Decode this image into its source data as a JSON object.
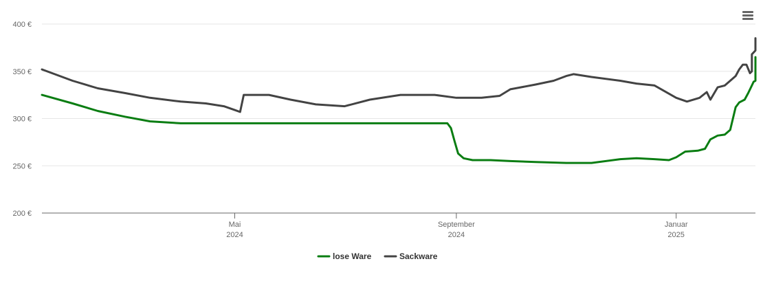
{
  "menu_icon": "hamburger-menu-icon",
  "chart_data": {
    "type": "line",
    "title": "",
    "xlabel": "",
    "ylabel": "",
    "ylim": [
      200,
      400
    ],
    "y_ticks": [
      {
        "value": 400,
        "label": "400 €"
      },
      {
        "value": 350,
        "label": "350 €"
      },
      {
        "value": 300,
        "label": "300 €"
      },
      {
        "value": 250,
        "label": "250 €"
      },
      {
        "value": 200,
        "label": "200 €"
      }
    ],
    "xlim": [
      "2024-01-15",
      "2025-02-14"
    ],
    "x_ticks": [
      {
        "date": "2024-05-01",
        "month": "Mai",
        "year": "2024"
      },
      {
        "date": "2024-09-01",
        "month": "September",
        "year": "2024"
      },
      {
        "date": "2025-01-01",
        "month": "Januar",
        "year": "2025"
      }
    ],
    "grid": true,
    "legend_position": "bottom-center",
    "series": [
      {
        "name": "lose Ware",
        "color": "#0a7d12",
        "points": [
          [
            "2024-01-15",
            325
          ],
          [
            "2024-02-01",
            316
          ],
          [
            "2024-02-15",
            308
          ],
          [
            "2024-03-01",
            302
          ],
          [
            "2024-03-15",
            297
          ],
          [
            "2024-04-01",
            295
          ],
          [
            "2024-05-01",
            295
          ],
          [
            "2024-06-01",
            295
          ],
          [
            "2024-07-01",
            295
          ],
          [
            "2024-08-01",
            295
          ],
          [
            "2024-08-27",
            295
          ],
          [
            "2024-08-29",
            290
          ],
          [
            "2024-08-31",
            276
          ],
          [
            "2024-09-02",
            263
          ],
          [
            "2024-09-05",
            258
          ],
          [
            "2024-09-10",
            256
          ],
          [
            "2024-09-20",
            256
          ],
          [
            "2024-10-01",
            255
          ],
          [
            "2024-10-15",
            254
          ],
          [
            "2024-11-01",
            253
          ],
          [
            "2024-11-15",
            253
          ],
          [
            "2024-12-01",
            257
          ],
          [
            "2024-12-10",
            258
          ],
          [
            "2024-12-20",
            257
          ],
          [
            "2024-12-28",
            256
          ],
          [
            "2025-01-01",
            259
          ],
          [
            "2025-01-06",
            265
          ],
          [
            "2025-01-13",
            266
          ],
          [
            "2025-01-17",
            268
          ],
          [
            "2025-01-20",
            278
          ],
          [
            "2025-01-24",
            282
          ],
          [
            "2025-01-28",
            283
          ],
          [
            "2025-01-31",
            288
          ],
          [
            "2025-02-03",
            312
          ],
          [
            "2025-02-05",
            317
          ],
          [
            "2025-02-08",
            320
          ],
          [
            "2025-02-10",
            327
          ],
          [
            "2025-02-12",
            335
          ],
          [
            "2025-02-13",
            339
          ],
          [
            "2025-02-14",
            340
          ],
          [
            "2025-02-14",
            351
          ],
          [
            "2025-02-14",
            365
          ]
        ]
      },
      {
        "name": "Sackware",
        "color": "#434343",
        "points": [
          [
            "2024-01-15",
            352
          ],
          [
            "2024-02-01",
            340
          ],
          [
            "2024-02-15",
            332
          ],
          [
            "2024-03-01",
            327
          ],
          [
            "2024-03-15",
            322
          ],
          [
            "2024-04-01",
            318
          ],
          [
            "2024-04-15",
            316
          ],
          [
            "2024-04-25",
            313
          ],
          [
            "2024-05-01",
            309
          ],
          [
            "2024-05-04",
            307
          ],
          [
            "2024-05-06",
            325
          ],
          [
            "2024-05-20",
            325
          ],
          [
            "2024-06-01",
            320
          ],
          [
            "2024-06-15",
            315
          ],
          [
            "2024-07-01",
            313
          ],
          [
            "2024-07-15",
            320
          ],
          [
            "2024-08-01",
            325
          ],
          [
            "2024-08-20",
            325
          ],
          [
            "2024-09-01",
            322
          ],
          [
            "2024-09-15",
            322
          ],
          [
            "2024-09-25",
            324
          ],
          [
            "2024-10-01",
            331
          ],
          [
            "2024-10-15",
            336
          ],
          [
            "2024-10-25",
            340
          ],
          [
            "2024-11-01",
            345
          ],
          [
            "2024-11-05",
            347
          ],
          [
            "2024-11-15",
            344
          ],
          [
            "2024-12-01",
            340
          ],
          [
            "2024-12-10",
            337
          ],
          [
            "2024-12-20",
            335
          ],
          [
            "2025-01-01",
            322
          ],
          [
            "2025-01-07",
            318
          ],
          [
            "2025-01-14",
            322
          ],
          [
            "2025-01-18",
            328
          ],
          [
            "2025-01-20",
            320
          ],
          [
            "2025-01-24",
            333
          ],
          [
            "2025-01-28",
            335
          ],
          [
            "2025-01-31",
            340
          ],
          [
            "2025-02-03",
            345
          ],
          [
            "2025-02-05",
            352
          ],
          [
            "2025-02-07",
            357
          ],
          [
            "2025-02-09",
            357
          ],
          [
            "2025-02-11",
            348
          ],
          [
            "2025-02-12",
            350
          ],
          [
            "2025-02-12",
            368
          ],
          [
            "2025-02-13",
            370
          ],
          [
            "2025-02-14",
            372
          ],
          [
            "2025-02-14",
            385
          ]
        ]
      }
    ]
  }
}
